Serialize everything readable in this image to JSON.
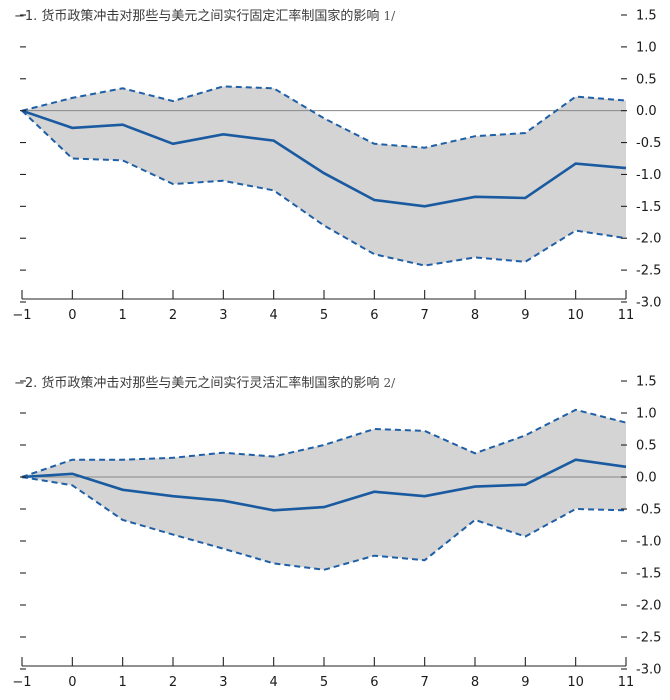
{
  "chart_data": [
    {
      "type": "line",
      "title": "−1. 货币政策冲击对那些与美元之间实行固定汇率制国家的影响",
      "title_note": "1/",
      "x": [
        -1,
        0,
        1,
        2,
        3,
        4,
        5,
        6,
        7,
        8,
        9,
        10,
        11
      ],
      "xlim": [
        -1,
        11
      ],
      "ylim": [
        -3.0,
        1.5
      ],
      "y_ticks": [
        "1.5",
        "1.0",
        "0.5",
        "0.0",
        "-0.5",
        "-1.0",
        "-1.5",
        "-2.0",
        "-2.5",
        "-3.0"
      ],
      "x_ticks": [
        "−1",
        "0",
        "1",
        "2",
        "3",
        "4",
        "5",
        "6",
        "7",
        "8",
        "9",
        "10",
        "11"
      ],
      "series": [
        {
          "role": "estimate",
          "values": [
            0.0,
            -0.27,
            -0.22,
            -0.52,
            -0.37,
            -0.47,
            -0.98,
            -1.4,
            -1.5,
            -1.35,
            -1.37,
            -0.83,
            -0.9
          ]
        },
        {
          "role": "upper",
          "values": [
            0.0,
            0.2,
            0.35,
            0.15,
            0.38,
            0.35,
            -0.12,
            -0.52,
            -0.58,
            -0.4,
            -0.35,
            0.22,
            0.16
          ]
        },
        {
          "role": "lower",
          "values": [
            0.0,
            -0.75,
            -0.78,
            -1.15,
            -1.1,
            -1.25,
            -1.8,
            -2.25,
            -2.43,
            -2.3,
            -2.37,
            -1.88,
            -2.0
          ]
        }
      ],
      "zero_line": true,
      "grid": false
    },
    {
      "type": "line",
      "title": "−2. 货币政策冲击对那些与美元之间实行灵活汇率制国家的影响",
      "title_note": "2/",
      "x": [
        -1,
        0,
        1,
        2,
        3,
        4,
        5,
        6,
        7,
        8,
        9,
        10,
        11
      ],
      "xlim": [
        -1,
        11
      ],
      "ylim": [
        -3.0,
        1.5
      ],
      "y_ticks": [
        "1.5",
        "1.0",
        "0.5",
        "0.0",
        "-0.5",
        "-1.0",
        "-1.5",
        "-2.0",
        "-2.5",
        "-3.0"
      ],
      "x_ticks": [
        "−1",
        "0",
        "1",
        "2",
        "3",
        "4",
        "5",
        "6",
        "7",
        "8",
        "9",
        "10",
        "11"
      ],
      "series": [
        {
          "role": "estimate",
          "values": [
            0.0,
            0.05,
            -0.2,
            -0.3,
            -0.37,
            -0.52,
            -0.47,
            -0.23,
            -0.3,
            -0.15,
            -0.12,
            0.27,
            0.16
          ]
        },
        {
          "role": "upper",
          "values": [
            0.0,
            0.27,
            0.27,
            0.3,
            0.38,
            0.32,
            0.5,
            0.75,
            0.72,
            0.37,
            0.65,
            1.05,
            0.85
          ]
        },
        {
          "role": "lower",
          "values": [
            0.0,
            -0.13,
            -0.67,
            -0.9,
            -1.12,
            -1.35,
            -1.45,
            -1.23,
            -1.3,
            -0.67,
            -0.93,
            -0.5,
            -0.52
          ]
        }
      ],
      "zero_line": true,
      "grid": false
    }
  ],
  "colors": {
    "estimate_line": "#1a5aa0",
    "bound_line": "#1f5fa6",
    "band_fill": "#d4d4d4",
    "zero_line": "#888888",
    "axis": "#222222"
  }
}
